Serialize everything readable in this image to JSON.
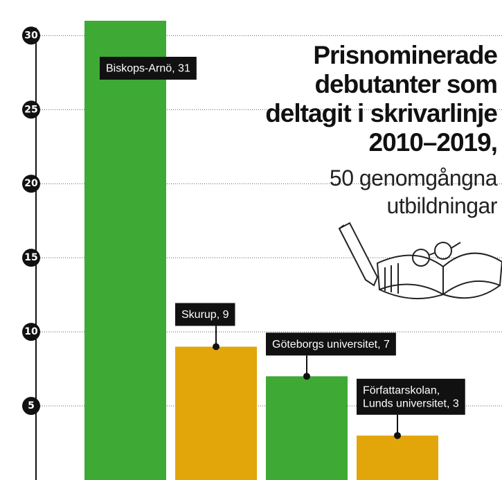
{
  "chart_data": {
    "type": "bar",
    "title": [
      "Prisnominerade",
      "debutanter som",
      "deltagit i skrivarlinje",
      "2010–2019,"
    ],
    "subtitle": [
      "50 genomgångna",
      "utbildningar"
    ],
    "values": [
      31,
      9,
      7,
      3
    ],
    "value_labels": [
      [
        "Biskops-Arnö, 31"
      ],
      [
        "Skurup, 9"
      ],
      [
        "Göteborgs universitet, 7"
      ],
      [
        "Författarskolan,",
        "Lunds universitet, 3"
      ]
    ],
    "colors": [
      "#3fa935",
      "#e2a60b",
      "#3fa935",
      "#e2a60b"
    ],
    "ylim": [
      0,
      32.4
    ],
    "yticks": [
      5,
      10,
      15,
      20,
      25,
      30
    ],
    "grid": true
  }
}
